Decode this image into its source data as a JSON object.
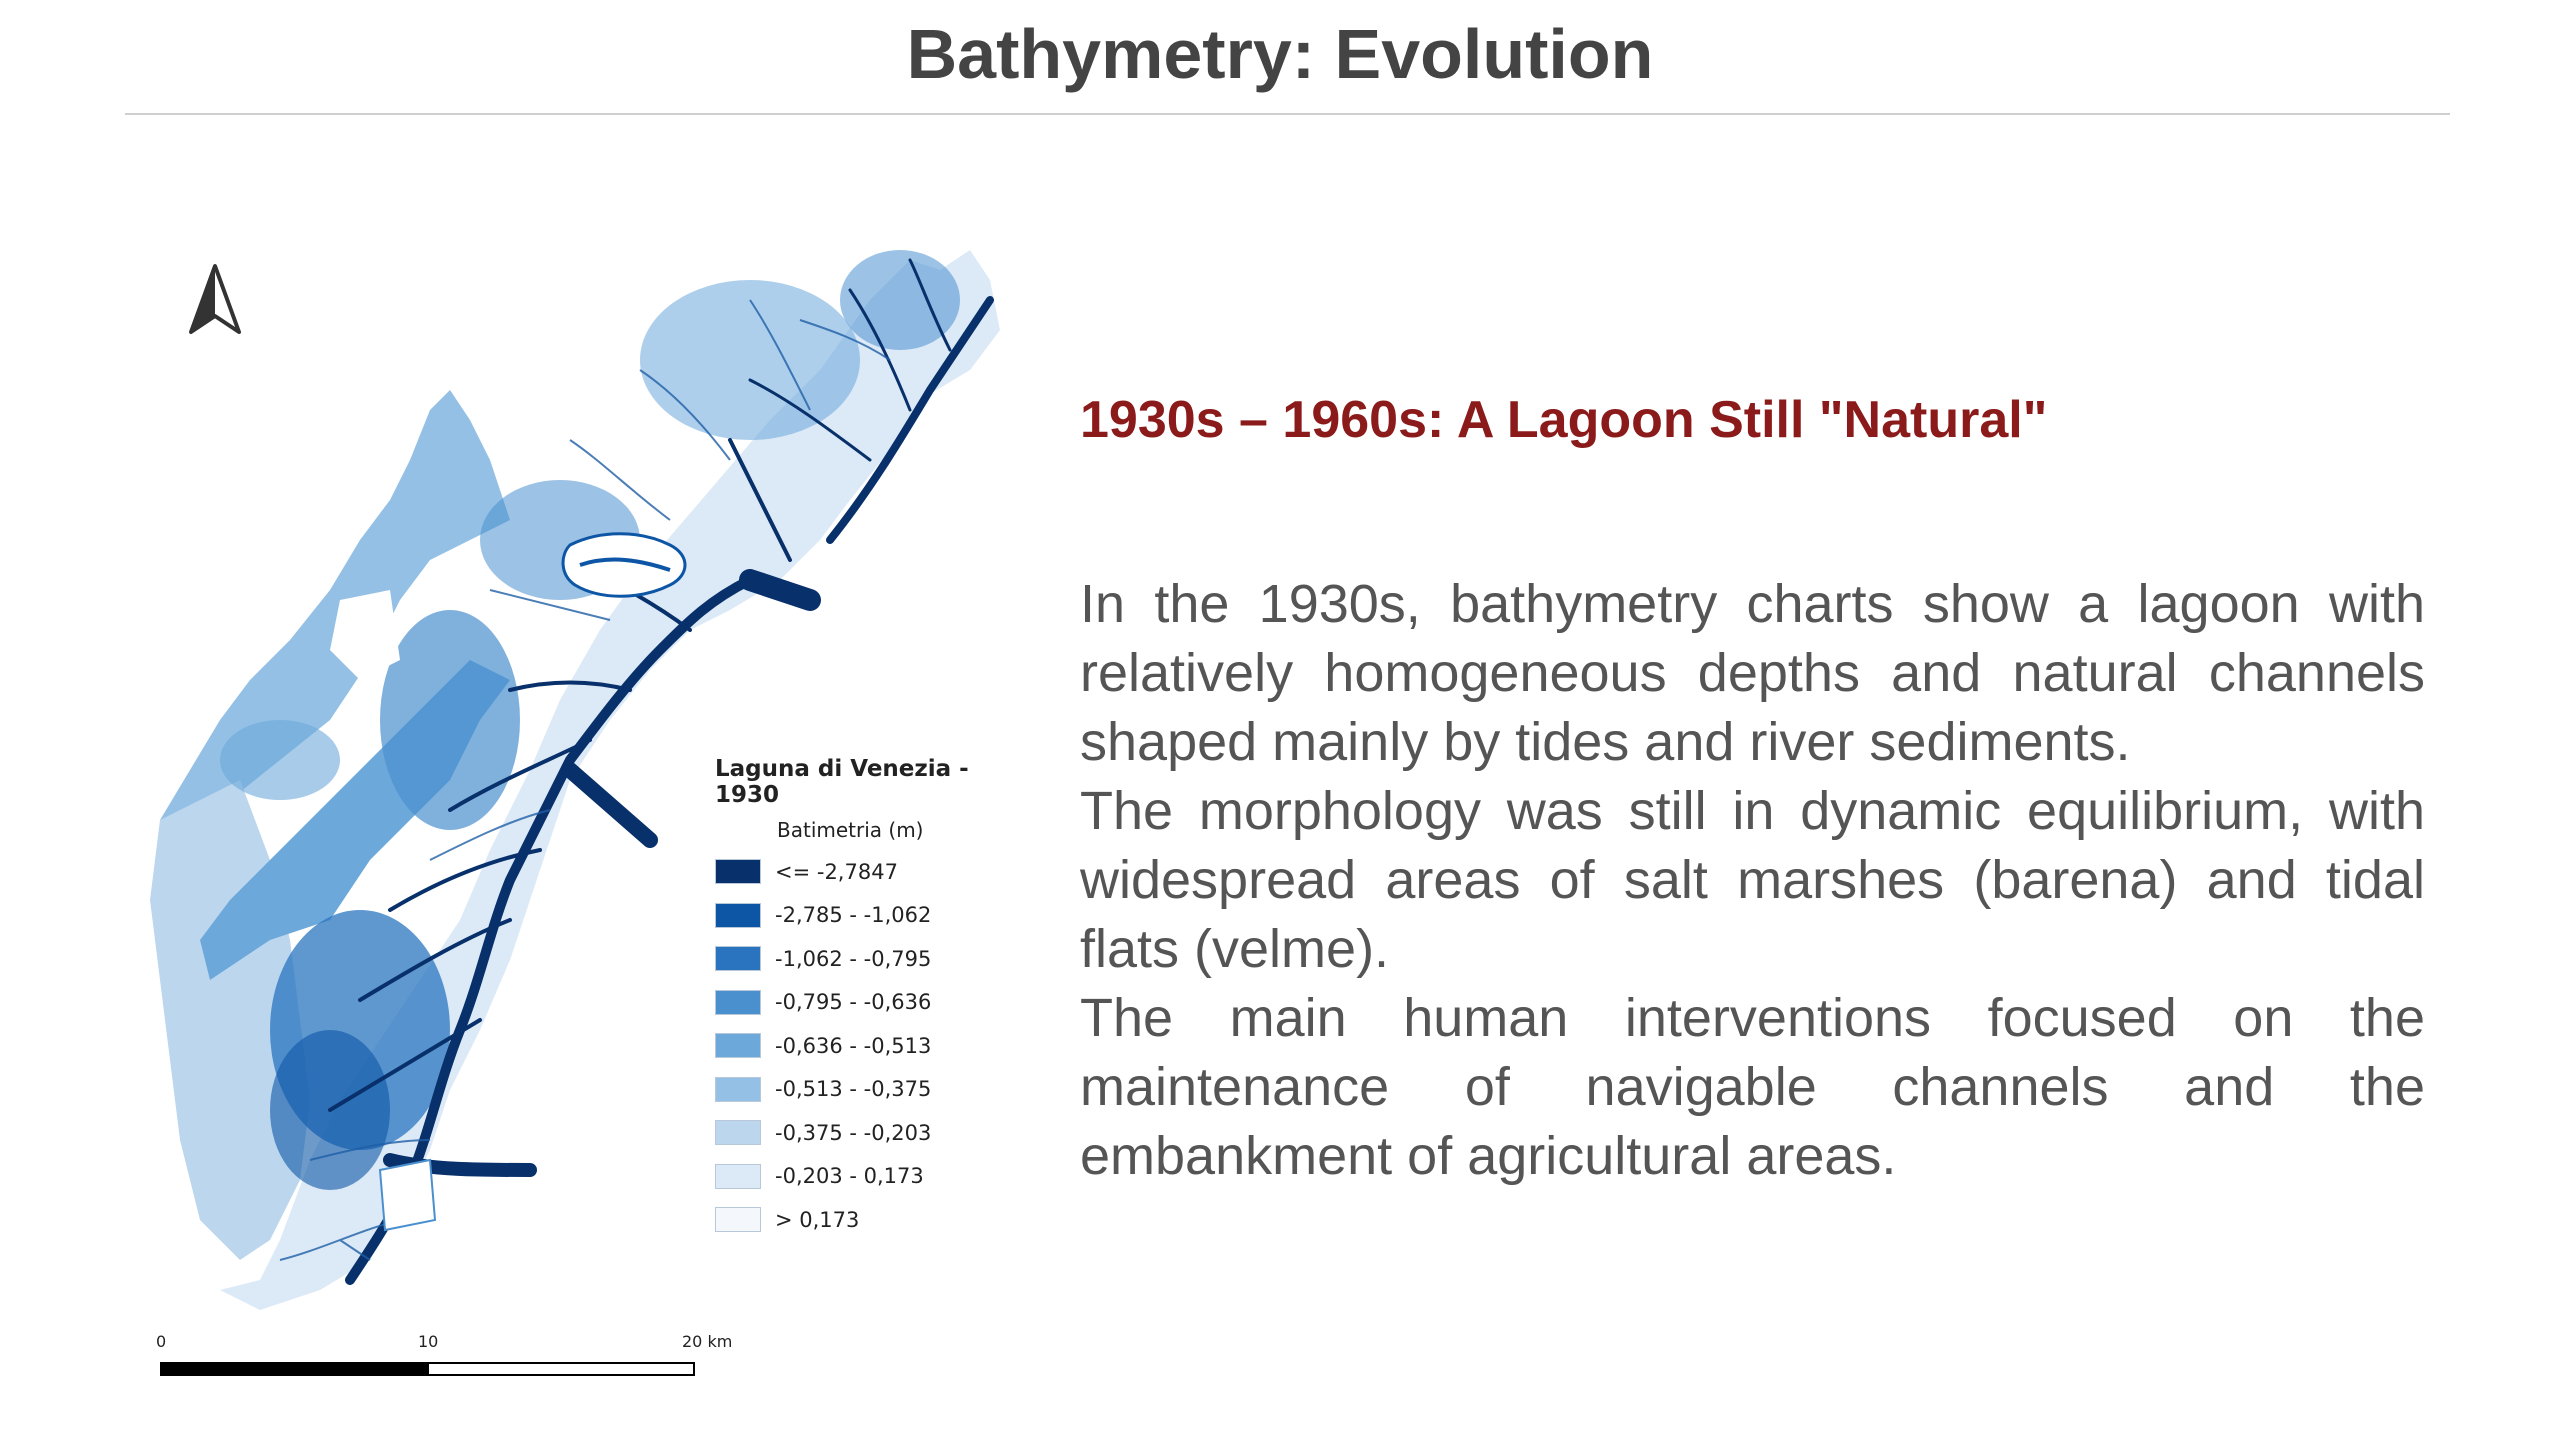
{
  "slide": {
    "title": "Bathymetry: Evolution"
  },
  "map": {
    "legend": {
      "title": "Laguna di Venezia - 1930",
      "subtitle": "Batimetria (m)",
      "items": [
        {
          "label": "<= -2,7847",
          "color": "#08306b"
        },
        {
          "label": "-2,785 - -1,062",
          "color": "#0d56a6"
        },
        {
          "label": "-1,062 - -0,795",
          "color": "#2a74bf"
        },
        {
          "label": "-0,795 - -0,636",
          "color": "#4a90cf"
        },
        {
          "label": "-0,636 - -0,513",
          "color": "#6ca8da"
        },
        {
          "label": "-0,513 - -0,375",
          "color": "#93c0e4"
        },
        {
          "label": "-0,375 - -0,203",
          "color": "#bcd6ee"
        },
        {
          "label": "-0,203 - 0,173",
          "color": "#dce9f6"
        },
        {
          "label": "> 0,173",
          "color": "#f4f8fc"
        }
      ]
    },
    "scale": {
      "ticks": [
        "0",
        "10",
        "20 km"
      ]
    },
    "north_icon": "north-arrow-icon"
  },
  "content": {
    "heading": "1930s – 1960s: A Lagoon Still \"Natural\"",
    "paragraphs": [
      "In the 1930s, bathymetry charts show a lagoon with relatively homogeneous depths and natural channels shaped mainly by tides and river sediments.",
      "The morphology was still in dynamic equilibrium, with widespread areas of salt marshes (barena) and tidal flats (velme).",
      "The main human interventions focused on the maintenance of navigable channels and the embankment of agricultural areas."
    ]
  }
}
